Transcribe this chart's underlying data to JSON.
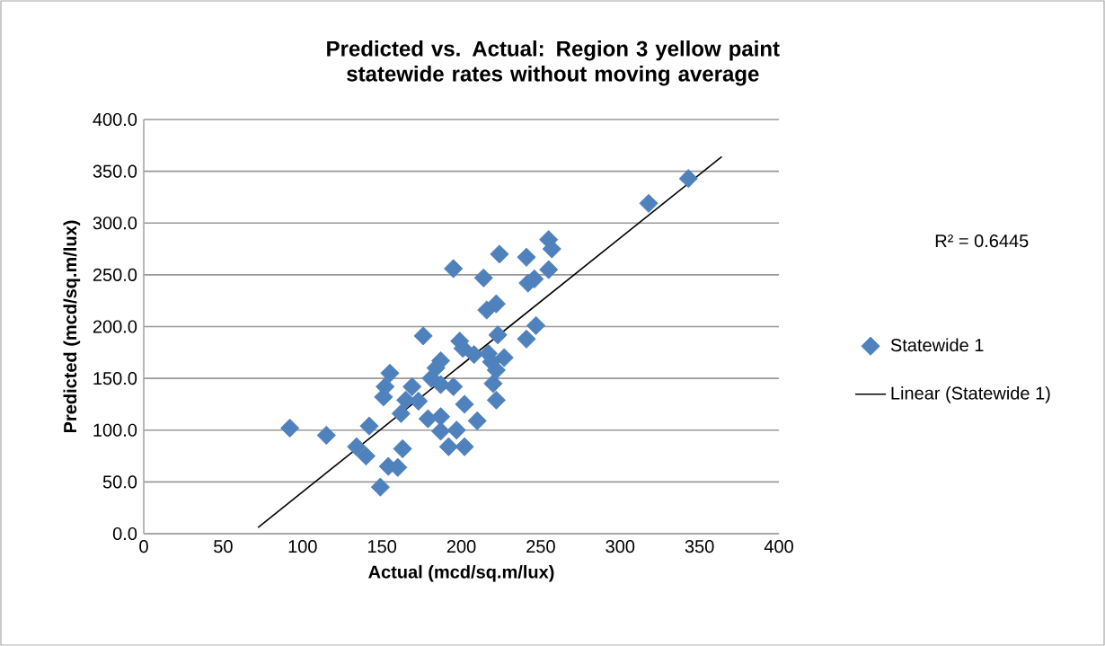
{
  "chart_data": {
    "type": "scatter",
    "title": "Predicted vs. Actual: Region 3 yellow paint statewide rates without moving average",
    "xlabel": "Actual (mcd/sq.m/lux)",
    "ylabel": "Predicted (mcd/sq.m/lux)",
    "xlim": [
      0,
      400
    ],
    "xticks": [
      0,
      50,
      100,
      150,
      200,
      250,
      300,
      350,
      400
    ],
    "ylim": [
      0,
      400
    ],
    "yticks": [
      {
        "value": 0,
        "label": "0.0"
      },
      {
        "value": 50,
        "label": "50.0"
      },
      {
        "value": 100,
        "label": "100.0"
      },
      {
        "value": 150,
        "label": "150.0"
      },
      {
        "value": 200,
        "label": "200.0"
      },
      {
        "value": 250,
        "label": "250.0"
      },
      {
        "value": 300,
        "label": "300.0"
      },
      {
        "value": 350,
        "label": "350.0"
      },
      {
        "value": 400,
        "label": "400.0"
      }
    ],
    "grid": "y",
    "legend": "right",
    "marker": "diamond",
    "annotations": [
      "R² = 0.6445"
    ],
    "series": [
      {
        "name": "Statewide 1",
        "color": "#4f81bd",
        "x": [
          92,
          115,
          142,
          134,
          140,
          149,
          154,
          160,
          163,
          176,
          155,
          152,
          151,
          169,
          165,
          162,
          173,
          195,
          214,
          224,
          241,
          255,
          257,
          255,
          242,
          246,
          216,
          222,
          223,
          241,
          247,
          199,
          201,
          208,
          217,
          227,
          219,
          222,
          220,
          222,
          187,
          184,
          181,
          187,
          195,
          202,
          179,
          187,
          187,
          197,
          210,
          192,
          202,
          318,
          343
        ],
        "values": [
          102,
          95,
          104,
          84,
          75,
          45,
          65,
          64,
          82,
          191,
          155,
          142,
          132,
          142,
          129,
          116,
          128,
          256,
          247,
          270,
          267,
          284,
          275,
          255,
          242,
          246,
          216,
          222,
          192,
          188,
          201,
          186,
          179,
          173,
          174,
          170,
          166,
          158,
          145,
          129,
          167,
          160,
          150,
          144,
          142,
          125,
          111,
          113,
          99,
          100,
          109,
          84,
          84,
          319,
          343
        ]
      },
      {
        "name": "Linear (Statewide 1)",
        "type": "line",
        "color": "#000000",
        "marker": "none",
        "x": [
          72,
          364
        ],
        "values": [
          6,
          364
        ]
      }
    ]
  }
}
